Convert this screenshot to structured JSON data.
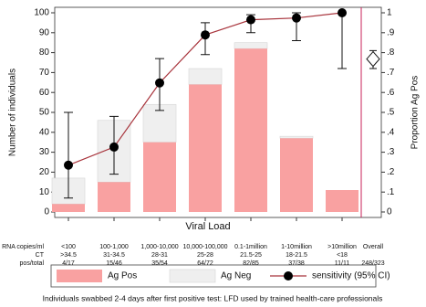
{
  "chart_data": {
    "type": "bar",
    "y_label": "Number of individuals",
    "y2_label": "Proportion Ag Pos",
    "x_label": "Viral Load",
    "caption": "Individuals swabbed 2-4 days after first positive test: LFD used by trained health-care professionals",
    "row_labels": [
      "RNA copies/ml",
      "CT",
      "pos/total"
    ],
    "categories": [
      "<100",
      "100-1,000",
      "1,000-10,000",
      "10,000-100,000",
      "0.1-1million",
      "1-10million",
      ">10million"
    ],
    "ct": [
      ">34.5",
      "31-34.5",
      "28-31",
      "25-28",
      "21.5-25",
      "18-21.5",
      "<18"
    ],
    "pos_total": [
      "4/17",
      "15/46",
      "35/54",
      "64/72",
      "82/85",
      "37/38",
      "11/11"
    ],
    "series": [
      {
        "name": "Ag Pos",
        "color": "#f9a1a1",
        "values": [
          4,
          15,
          35,
          64,
          82,
          37,
          11
        ]
      },
      {
        "name": "Ag Neg",
        "color": "#efefef",
        "values": [
          13,
          31,
          19,
          8,
          3,
          1,
          0
        ]
      },
      {
        "name": "sensitivity (95% CI)",
        "color": "#a8343c",
        "axis": "y2",
        "values": [
          0.235,
          0.326,
          0.648,
          0.889,
          0.965,
          0.974,
          1.0
        ],
        "ci_low": [
          0.07,
          0.19,
          0.51,
          0.79,
          0.9,
          0.86,
          0.72
        ],
        "ci_high": [
          0.5,
          0.48,
          0.77,
          0.95,
          0.99,
          1.0,
          1.0
        ]
      }
    ],
    "overall": {
      "label": "Overall",
      "pos_total": "248/323",
      "value": 0.768,
      "ci_low": 0.72,
      "ci_high": 0.81
    },
    "separator_color": "#c8205a",
    "ylim": [
      0,
      100
    ],
    "yticks": [
      0,
      10,
      20,
      30,
      40,
      50,
      60,
      70,
      80,
      90,
      100
    ],
    "y2lim": [
      0,
      1
    ],
    "y2ticks": [
      0,
      {
        "value": 0.1,
        "label": ".1"
      },
      {
        "value": 0.2,
        "label": ".2"
      },
      {
        "value": 0.3,
        "label": ".3"
      },
      {
        "value": 0.4,
        "label": ".4"
      },
      {
        "value": 0.5,
        "label": ".5"
      },
      {
        "value": 0.6,
        "label": ".6"
      },
      {
        "value": 0.7,
        "label": ".7"
      },
      {
        "value": 0.8,
        "label": ".8"
      },
      {
        "value": 0.9,
        "label": ".9"
      },
      1
    ]
  }
}
